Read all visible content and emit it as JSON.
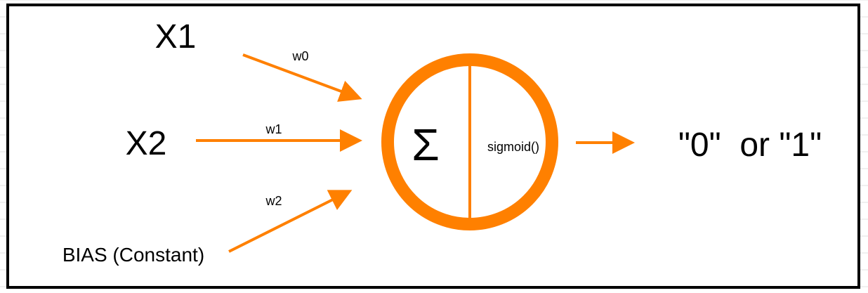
{
  "inputs": {
    "x1": "X1",
    "x2": "X2",
    "bias": "BIAS (Constant)"
  },
  "weights": {
    "w0": "w0",
    "w1": "w1",
    "w2": "w2"
  },
  "neuron": {
    "sum_symbol": "Σ",
    "activation": "sigmoid()"
  },
  "output": {
    "text": "\"0\"  or \"1\""
  },
  "colors": {
    "accent": "#ff8000",
    "text": "#000000",
    "frame": "#000000",
    "grid": "#e2e2e2"
  }
}
